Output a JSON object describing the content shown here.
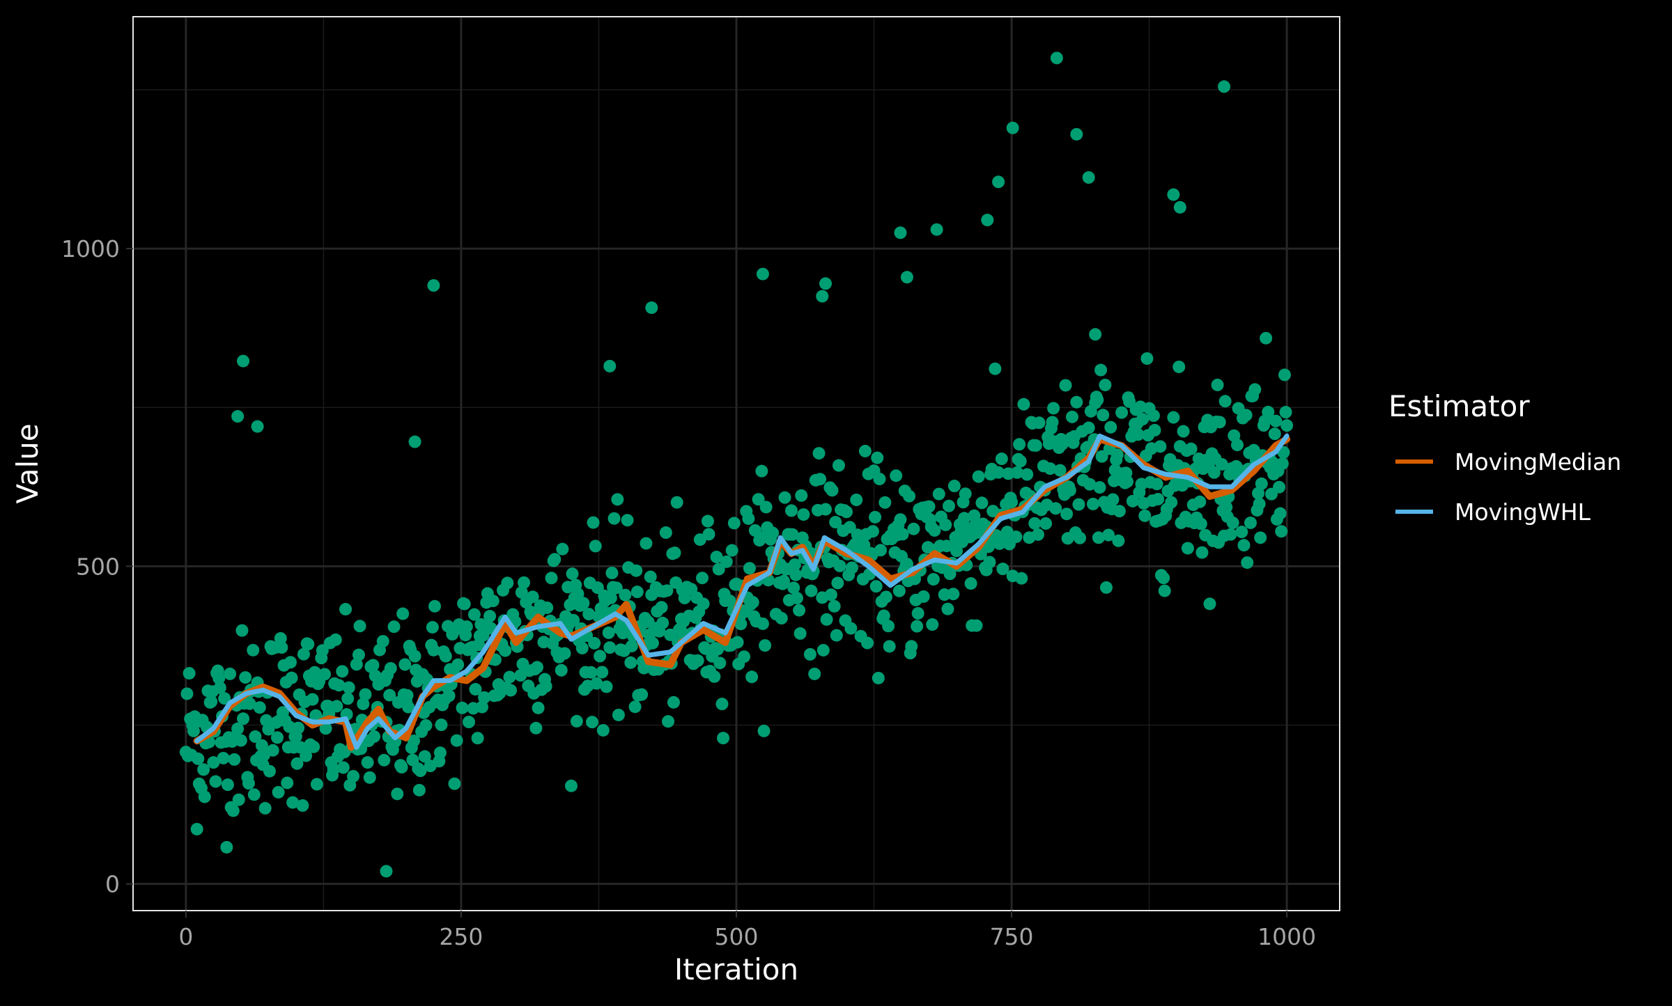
{
  "chart_data": {
    "type": "scatter",
    "title": "",
    "xlabel": "Iteration",
    "ylabel": "Value",
    "xlim": [
      -48,
      1048
    ],
    "ylim": [
      -42,
      1365
    ],
    "x_ticks": [
      0,
      250,
      500,
      750,
      1000
    ],
    "y_ticks": [
      0,
      500,
      1000
    ],
    "x_tick_labels": [
      "0",
      "250",
      "500",
      "750",
      "1000"
    ],
    "y_tick_labels": [
      "0",
      "500",
      "1000"
    ],
    "grid": true,
    "legend": {
      "title": "Estimator",
      "position": "right"
    },
    "colors": {
      "background": "#000000",
      "grid": "#1a1a1a",
      "panel_border": "#e6e6e6",
      "points": "#009E73",
      "moving_median": "#D55E00",
      "moving_whl": "#56B4E9"
    },
    "scatter_trend": [
      [
        0,
        230
      ],
      [
        100,
        275
      ],
      [
        150,
        250
      ],
      [
        200,
        270
      ],
      [
        250,
        330
      ],
      [
        300,
        400
      ],
      [
        400,
        410
      ],
      [
        450,
        400
      ],
      [
        500,
        450
      ],
      [
        550,
        520
      ],
      [
        600,
        520
      ],
      [
        650,
        500
      ],
      [
        700,
        540
      ],
      [
        750,
        590
      ],
      [
        800,
        650
      ],
      [
        850,
        660
      ],
      [
        900,
        640
      ],
      [
        950,
        650
      ],
      [
        1000,
        710
      ]
    ],
    "outliers": [
      {
        "x": 52,
        "y": 823
      },
      {
        "x": 47,
        "y": 736
      },
      {
        "x": 65,
        "y": 720
      },
      {
        "x": 208,
        "y": 696
      },
      {
        "x": 225,
        "y": 942
      },
      {
        "x": 182,
        "y": 20
      },
      {
        "x": 385,
        "y": 815
      },
      {
        "x": 423,
        "y": 907
      },
      {
        "x": 524,
        "y": 960
      },
      {
        "x": 578,
        "y": 925
      },
      {
        "x": 581,
        "y": 945
      },
      {
        "x": 649,
        "y": 1025
      },
      {
        "x": 655,
        "y": 955
      },
      {
        "x": 682,
        "y": 1030
      },
      {
        "x": 728,
        "y": 1045
      },
      {
        "x": 738,
        "y": 1105
      },
      {
        "x": 751,
        "y": 1190
      },
      {
        "x": 791,
        "y": 1300
      },
      {
        "x": 809,
        "y": 1180
      },
      {
        "x": 820,
        "y": 1112
      },
      {
        "x": 826,
        "y": 865
      },
      {
        "x": 897,
        "y": 1085
      },
      {
        "x": 903,
        "y": 1065
      },
      {
        "x": 943,
        "y": 1255
      }
    ],
    "series": [
      {
        "name": "MovingMedian",
        "x": [
          10,
          25,
          40,
          55,
          70,
          85,
          100,
          115,
          130,
          145,
          150,
          165,
          175,
          185,
          200,
          215,
          225,
          240,
          255,
          270,
          290,
          300,
          320,
          340,
          350,
          370,
          390,
          400,
          420,
          440,
          450,
          470,
          490,
          510,
          530,
          540,
          550,
          560,
          570,
          580,
          600,
          620,
          640,
          660,
          680,
          700,
          720,
          740,
          760,
          780,
          800,
          820,
          830,
          850,
          870,
          890,
          910,
          930,
          950,
          970,
          990,
          1000
        ],
        "y": [
          225,
          240,
          280,
          300,
          310,
          300,
          270,
          250,
          260,
          255,
          215,
          255,
          275,
          240,
          230,
          295,
          310,
          325,
          320,
          340,
          410,
          380,
          420,
          395,
          390,
          405,
          420,
          440,
          350,
          345,
          380,
          400,
          380,
          480,
          490,
          540,
          520,
          530,
          500,
          540,
          520,
          510,
          480,
          490,
          520,
          500,
          530,
          580,
          590,
          620,
          640,
          670,
          700,
          690,
          660,
          640,
          650,
          610,
          620,
          650,
          690,
          700
        ]
      },
      {
        "name": "MovingWHL",
        "x": [
          10,
          25,
          40,
          55,
          70,
          85,
          100,
          115,
          130,
          145,
          155,
          165,
          175,
          190,
          200,
          215,
          225,
          240,
          255,
          270,
          290,
          300,
          320,
          340,
          350,
          370,
          390,
          400,
          420,
          440,
          450,
          470,
          490,
          510,
          530,
          540,
          550,
          560,
          570,
          580,
          600,
          620,
          640,
          660,
          680,
          700,
          720,
          740,
          760,
          780,
          800,
          820,
          830,
          850,
          870,
          890,
          910,
          930,
          950,
          970,
          990,
          1000
        ],
        "y": [
          225,
          245,
          285,
          300,
          305,
          295,
          265,
          255,
          255,
          260,
          215,
          245,
          260,
          230,
          245,
          295,
          320,
          320,
          335,
          365,
          420,
          395,
          405,
          410,
          385,
          405,
          425,
          415,
          360,
          365,
          380,
          410,
          395,
          470,
          490,
          545,
          520,
          525,
          495,
          545,
          525,
          500,
          470,
          495,
          510,
          505,
          535,
          575,
          585,
          625,
          640,
          665,
          705,
          690,
          655,
          645,
          640,
          625,
          625,
          660,
          680,
          705
        ]
      }
    ]
  }
}
